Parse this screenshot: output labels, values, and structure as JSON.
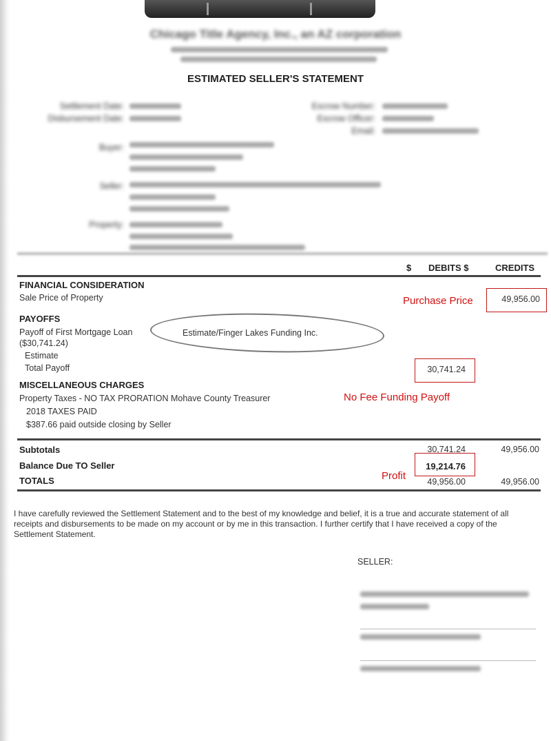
{
  "header": {
    "company": "Chicago Title Agency, Inc., an AZ corporation",
    "title": "ESTIMATED SELLER'S STATEMENT"
  },
  "info_labels": [
    "Settlement Date:",
    "Disbursement Date:",
    "Buyer:",
    "Seller:",
    "Property:",
    "Escrow Number:",
    "Escrow Officer:",
    "Email:"
  ],
  "columns": {
    "dollar1": "$",
    "debits": "DEBITS $",
    "credits": "CREDITS"
  },
  "sections": {
    "financial": {
      "heading": "FINANCIAL CONSIDERATION",
      "sale_price_label": "Sale Price of Property",
      "sale_price_credit": "49,956.00"
    },
    "payoffs": {
      "heading": "PAYOFFS",
      "line1": "Payoff of First Mortgage Loan",
      "line2": "($30,741.24)",
      "line3": "Estimate",
      "total_label": "Total Payoff",
      "total_debit": "30,741.24",
      "lender_note": "Estimate/Finger Lakes Funding Inc."
    },
    "misc": {
      "heading": "MISCELLANEOUS CHARGES",
      "line1": "Property Taxes - NO TAX PRORATION Mohave County Treasurer",
      "line2": "2018 TAXES PAID",
      "line3": "$387.66 paid outside closing by Seller"
    }
  },
  "totals": {
    "subtotals_label": "Subtotals",
    "subtotals_debit": "30,741.24",
    "subtotals_credit": "49,956.00",
    "balance_label": "Balance Due TO Seller",
    "balance_debit": "19,214.76",
    "totals_label": "TOTALS",
    "totals_debit": "49,956.00",
    "totals_credit": "49,956.00"
  },
  "annotations": {
    "purchase_price": "Purchase Price",
    "payoff": "No Fee Funding Payoff",
    "profit": "Profit",
    "color": "#d01010"
  },
  "certification": "I have carefully reviewed the Settlement Statement and to the best of my knowledge and belief, it is a true and accurate statement of all receipts and disbursements to be made on my account or by me in this transaction. I further certify that I have received a copy of the Settlement Statement.",
  "seller_label": "SELLER:"
}
